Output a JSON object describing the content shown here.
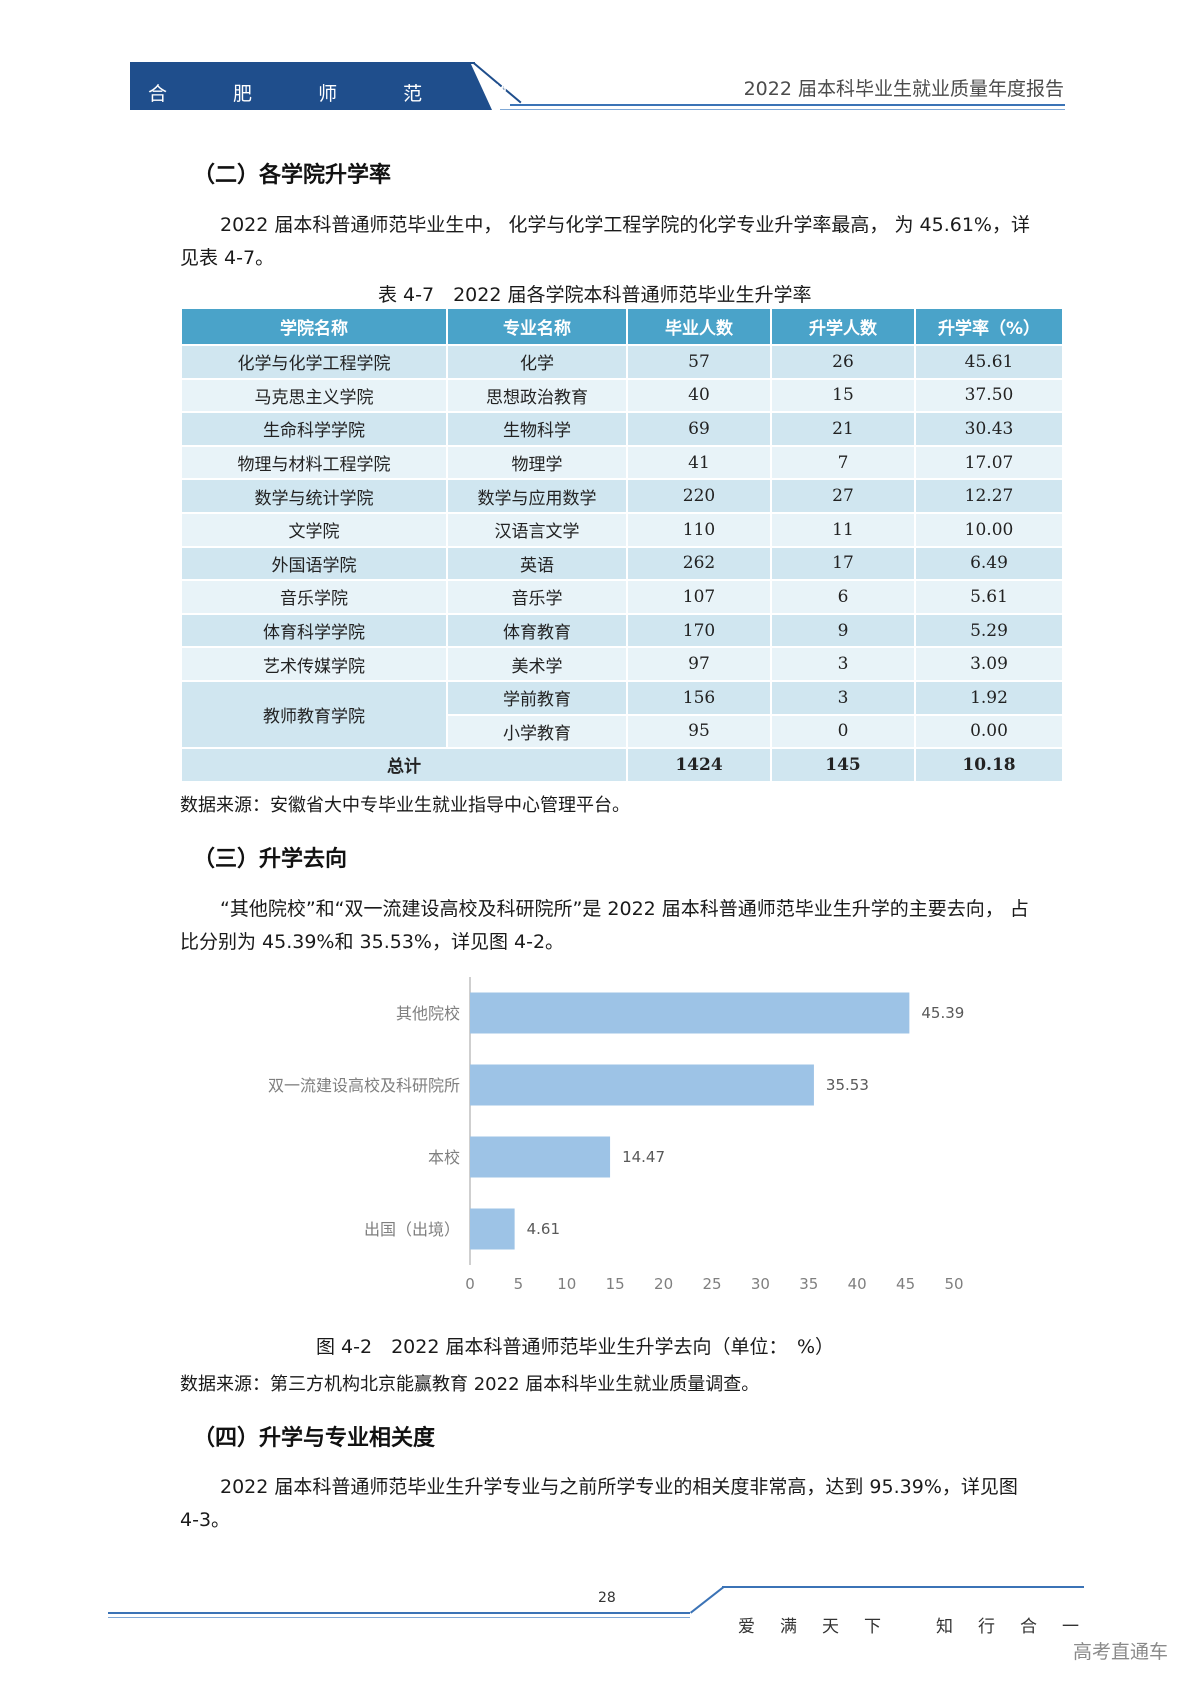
{
  "header": {
    "school": "合 肥 师 范 学 院",
    "report_title": "2022 届本科毕业生就业质量年度报告"
  },
  "section2": {
    "heading": "（二）各学院升学率",
    "paragraph": "2022 届本科普通师范毕业生中， 化学与化学工程学院的化学专业升学率最高， 为 45.61%，详见表 4-7。",
    "table_caption": "表 4-7　2022 届各学院本科普通师范毕业生升学率",
    "table": {
      "headers": [
        "学院名称",
        "专业名称",
        "毕业人数",
        "升学人数",
        "升学率（%）"
      ],
      "rows": [
        [
          "化学与化学工程学院",
          "化学",
          "57",
          "26",
          "45.61"
        ],
        [
          "马克思主义学院",
          "思想政治教育",
          "40",
          "15",
          "37.50"
        ],
        [
          "生命科学学院",
          "生物科学",
          "69",
          "21",
          "30.43"
        ],
        [
          "物理与材料工程学院",
          "物理学",
          "41",
          "7",
          "17.07"
        ],
        [
          "数学与统计学院",
          "数学与应用数学",
          "220",
          "27",
          "12.27"
        ],
        [
          "文学院",
          "汉语言文学",
          "110",
          "11",
          "10.00"
        ],
        [
          "外国语学院",
          "英语",
          "262",
          "17",
          "6.49"
        ],
        [
          "音乐学院",
          "音乐学",
          "107",
          "6",
          "5.61"
        ],
        [
          "体育科学学院",
          "体育教育",
          "170",
          "9",
          "5.29"
        ],
        [
          "艺术传媒学院",
          "美术学",
          "97",
          "3",
          "3.09"
        ]
      ],
      "merged_college": "教师教育学院",
      "merged_rows": [
        [
          "学前教育",
          "156",
          "3",
          "1.92"
        ],
        [
          "小学教育",
          "95",
          "0",
          "0.00"
        ]
      ],
      "total": [
        "总计",
        "1424",
        "145",
        "10.18"
      ]
    },
    "source": "数据来源：安徽省大中专毕业生就业指导中心管理平台。"
  },
  "section3": {
    "heading": "（三）升学去向",
    "paragraph": "“其他院校”和“双一流建设高校及科研院所”是 2022 届本科普通师范毕业生升学的主要去向， 占比分别为 45.39%和 35.53%，详见图 4-2。",
    "figure_caption": "图 4-2　2022 届本科普通师范毕业生升学去向（单位：　%）",
    "source": "数据来源：第三方机构北京能赢教育 2022 届本科毕业生就业质量调查。"
  },
  "chart_data": {
    "type": "bar",
    "orientation": "horizontal",
    "categories": [
      "其他院校",
      "双一流建设高校及科研院所",
      "本校",
      "出国（出境）"
    ],
    "values": [
      45.39,
      35.53,
      14.47,
      4.61
    ],
    "data_labels": [
      "45.39",
      "35.53",
      "14.47",
      "4.61"
    ],
    "xlim": [
      0,
      50
    ],
    "xticks": [
      "0",
      "5",
      "10",
      "15",
      "20",
      "25",
      "30",
      "35",
      "40",
      "45",
      "50"
    ],
    "bar_color": "#9dc3e6",
    "grid": false
  },
  "section4": {
    "heading": "（四）升学与专业相关度",
    "paragraph": "2022 届本科普通师范毕业生升学专业与之前所学专业的相关度非常高，达到 95.39%，详见图 4-3。"
  },
  "footer": {
    "page_number": "28",
    "motto": [
      "爱",
      "满",
      "天",
      "下",
      "知",
      "行",
      "合",
      "一"
    ],
    "watermark": "高考直通车"
  }
}
